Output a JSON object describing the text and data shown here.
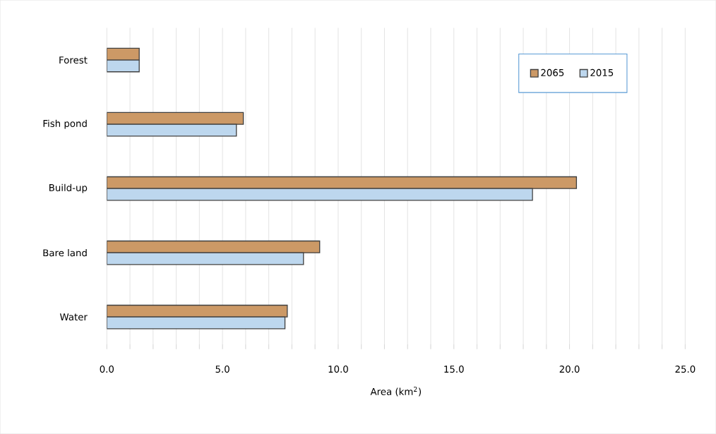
{
  "chart_data": {
    "type": "bar",
    "orientation": "horizontal",
    "xlabel": "Area (km$^{2}$)",
    "categories": [
      "Forest",
      "Fish pond",
      "Build-up",
      "Bare land",
      "Water"
    ],
    "series": [
      {
        "name": "2065",
        "color": "#cc9966",
        "values": [
          1.4,
          5.9,
          20.3,
          9.2,
          7.8
        ]
      },
      {
        "name": "2015",
        "color": "#bdd7ee",
        "values": [
          1.4,
          5.6,
          18.4,
          8.5,
          7.7
        ]
      }
    ],
    "xlim": [
      0,
      25
    ],
    "xticks": [
      {
        "value": 0,
        "label": "0.0"
      },
      {
        "value": 1,
        "label": null
      },
      {
        "value": 2,
        "label": null
      },
      {
        "value": 3,
        "label": null
      },
      {
        "value": 4,
        "label": null
      },
      {
        "value": 5,
        "label": "5.0"
      },
      {
        "value": 6,
        "label": null
      },
      {
        "value": 7,
        "label": null
      },
      {
        "value": 8,
        "label": null
      },
      {
        "value": 9,
        "label": null
      },
      {
        "value": 10,
        "label": "10.0"
      },
      {
        "value": 11,
        "label": null
      },
      {
        "value": 12,
        "label": null
      },
      {
        "value": 13,
        "label": null
      },
      {
        "value": 14,
        "label": null
      },
      {
        "value": 15,
        "label": "15.0"
      },
      {
        "value": 16,
        "label": null
      },
      {
        "value": 17,
        "label": null
      },
      {
        "value": 18,
        "label": null
      },
      {
        "value": 19,
        "label": null
      },
      {
        "value": 20,
        "label": "20.0"
      },
      {
        "value": 21,
        "label": null
      },
      {
        "value": 22,
        "label": null
      },
      {
        "value": 23,
        "label": null
      },
      {
        "value": 24,
        "label": null
      },
      {
        "value": 25,
        "label": "25.0"
      }
    ],
    "grid": "x",
    "legend": "top right"
  }
}
